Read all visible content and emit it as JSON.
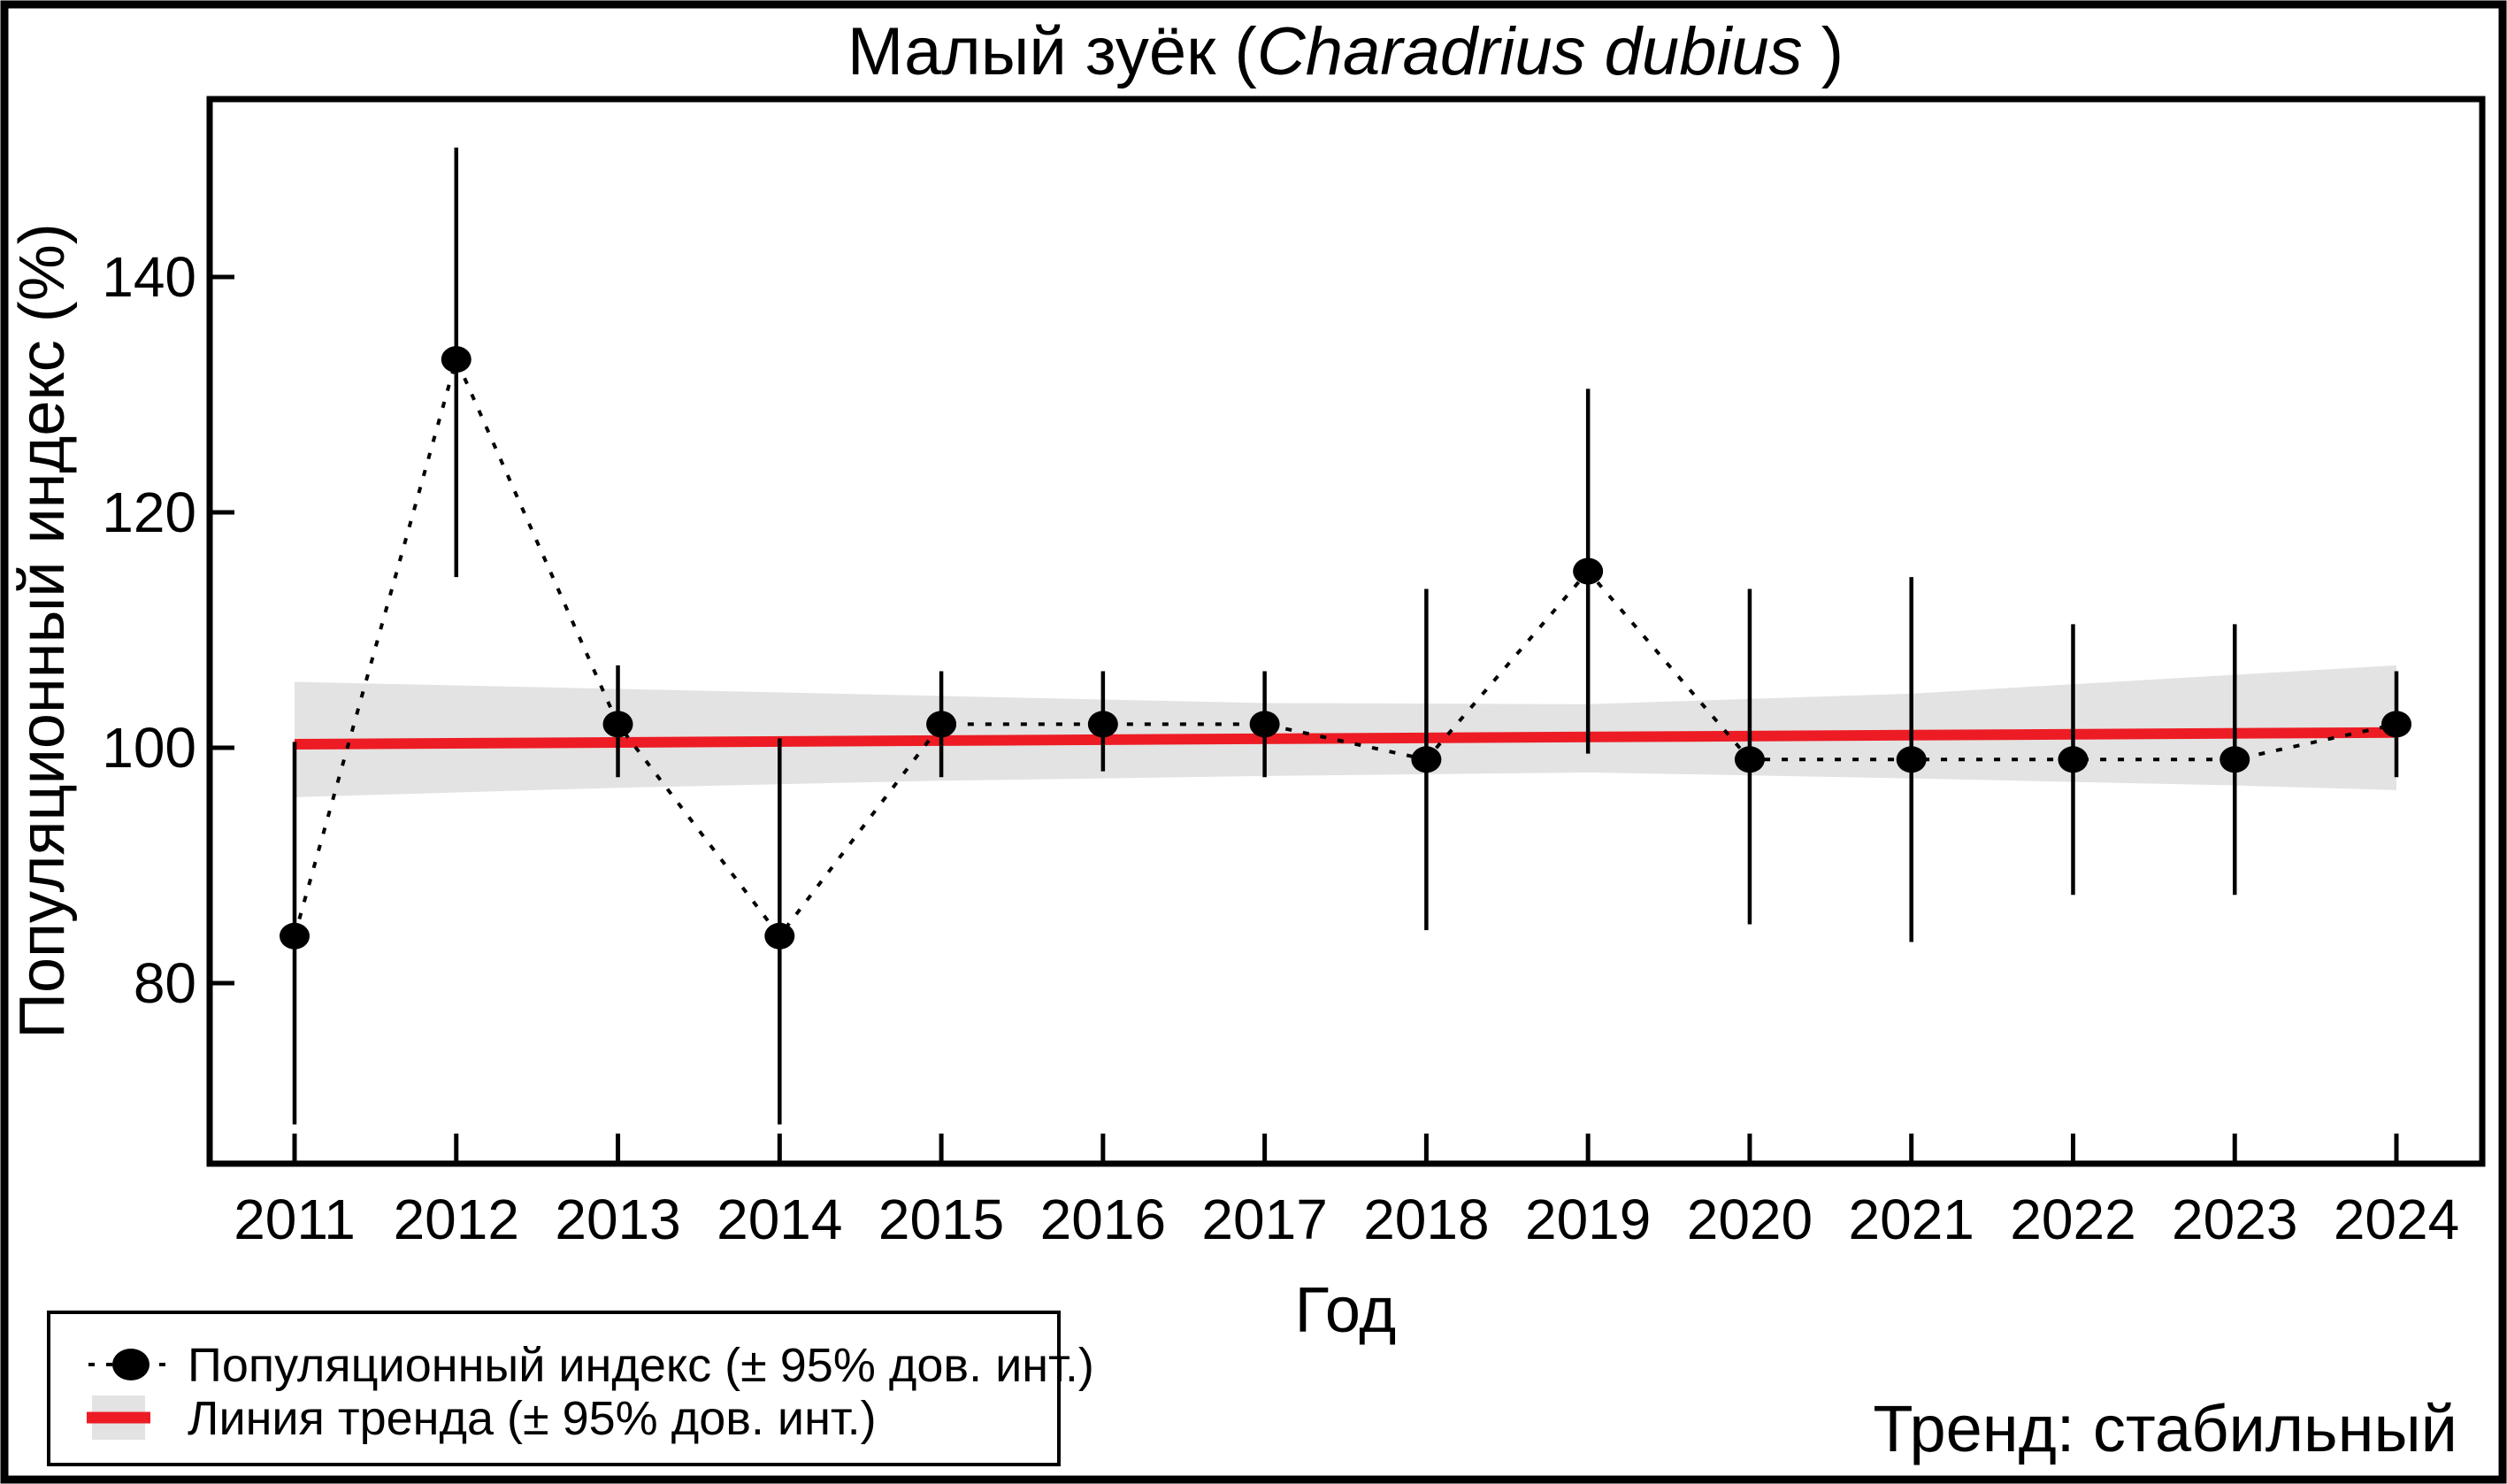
{
  "chart_data": {
    "type": "line",
    "title": {
      "prefix": "Малый зуёк (",
      "species": "Charadrius dubius",
      "suffix": " )"
    },
    "xlabel": "Год",
    "ylabel": "Популяционный индекс (%)",
    "x": [
      2011,
      2012,
      2013,
      2014,
      2015,
      2016,
      2017,
      2018,
      2019,
      2020,
      2021,
      2022,
      2023,
      2024
    ],
    "y_ticks": [
      140,
      120,
      100,
      80
    ],
    "xlim": [
      2010.48,
      2024.52
    ],
    "ylim": [
      64.7,
      155.1
    ],
    "grid": false,
    "legend_position": "bottom-left",
    "series": [
      {
        "name": "Популяционный индекс (± 95% дов. инт.)",
        "type": "points-with-ci",
        "values": [
          84,
          133,
          102,
          84,
          102,
          102,
          102,
          99,
          115,
          99,
          99,
          99,
          99,
          102
        ],
        "ci_low": [
          68,
          114.5,
          97.5,
          68,
          97.5,
          98,
          97.5,
          84.5,
          99.5,
          85,
          83.5,
          87.5,
          87.5,
          97.5
        ],
        "ci_high": [
          100.5,
          151,
          107,
          100.8,
          106.5,
          106.5,
          106.5,
          113.5,
          130.5,
          113.5,
          114.5,
          110.5,
          110.5,
          106.5
        ]
      },
      {
        "name": "Линия тренда (± 95% дов. инт.)",
        "type": "trend-with-band",
        "line": {
          "x": [
            2011,
            2024
          ],
          "y": [
            100.3,
            101.3
          ]
        },
        "band": {
          "x": [
            2011,
            2013,
            2015,
            2017,
            2019,
            2021,
            2023,
            2024
          ],
          "top": [
            105.6,
            105.0,
            104.4,
            103.8,
            103.7,
            104.6,
            106.2,
            107.0
          ],
          "bottom": [
            95.8,
            96.6,
            97.2,
            97.6,
            97.9,
            97.4,
            96.8,
            96.4
          ]
        }
      }
    ],
    "legend": {
      "items": [
        {
          "symbol": "black-point-with-dotted-line",
          "label": "Популяционный индекс (± 95% дов. инт.)"
        },
        {
          "symbol": "red-line-with-gray-band",
          "label": "Линия тренда (± 95% дов. инт.)"
        }
      ]
    },
    "annotation": {
      "text": "Тренд: стабильный",
      "color": "#00008B"
    },
    "colors": {
      "trend": "#ed1c24",
      "band": "#e3e3e3",
      "points": "#000000"
    }
  }
}
